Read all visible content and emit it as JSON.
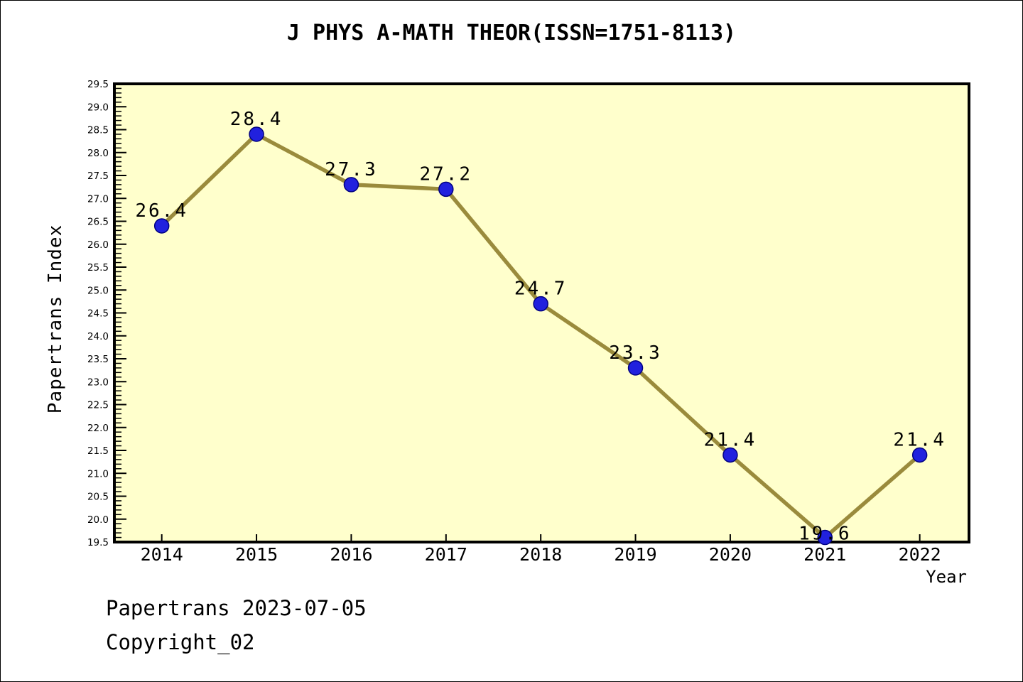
{
  "chart_data": {
    "type": "line",
    "title": "J PHYS A-MATH THEOR(ISSN=1751-8113)",
    "xlabel": "Year",
    "ylabel": "Papertrans Index",
    "x": [
      2014,
      2015,
      2016,
      2017,
      2018,
      2019,
      2020,
      2021,
      2022
    ],
    "values": [
      26.4,
      28.4,
      27.3,
      27.2,
      24.7,
      23.3,
      21.4,
      19.6,
      21.4
    ],
    "point_labels": [
      "26.4",
      "28.4",
      "27.3",
      "27.2",
      "24.7",
      "23.3",
      "21.4",
      "19.6",
      "21.4"
    ],
    "ylim": [
      19.5,
      29.5
    ],
    "xlim": [
      2013.5,
      2022.52
    ],
    "y_major_step": 0.5,
    "y_minor_step": 0.1,
    "grid": false,
    "legend": "none",
    "colors": {
      "plot_background": "#FFFFCC",
      "line": "#9A8B3C",
      "marker_fill": "#2121DE",
      "marker_edge": "#000080",
      "axis": "#000000",
      "text": "#000000"
    }
  },
  "footer": {
    "line1": "Papertrans 2023-07-05",
    "line2": "Copyright_02"
  }
}
